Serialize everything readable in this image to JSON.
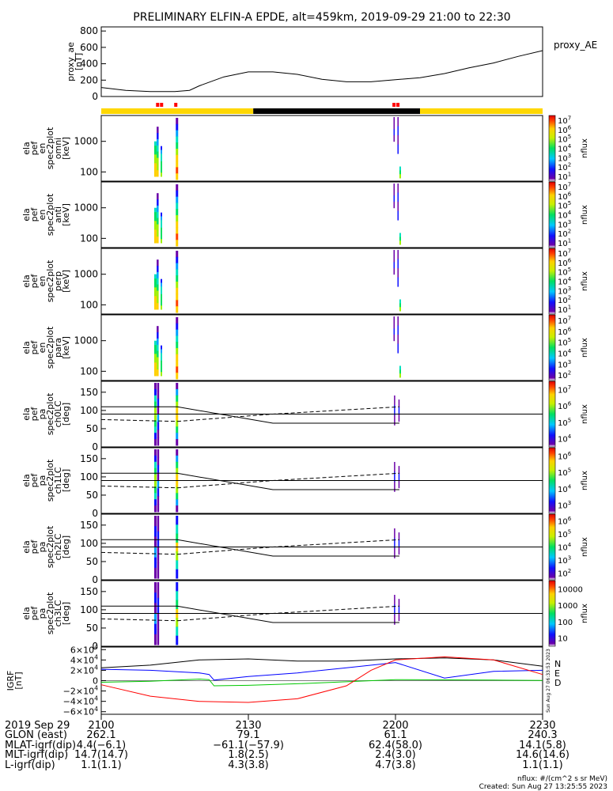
{
  "title": "PRELIMINARY ELFIN-A EPDE, alt=459km, 2019-09-29 21:00 to 22:30",
  "chart_data": [
    {
      "type": "line",
      "id": "proxy_ae",
      "ylabel": [
        "proxy_ae",
        "[nT]"
      ],
      "legend": "proxy_AE",
      "ylim": [
        0,
        850
      ],
      "yticks": [
        "0",
        "200",
        "400",
        "600",
        "800"
      ],
      "x_minutes": [
        0,
        5,
        10,
        15,
        18,
        20,
        25,
        30,
        35,
        40,
        45,
        50,
        55,
        60,
        65,
        70,
        75,
        80,
        85,
        90
      ],
      "values": [
        110,
        75,
        60,
        60,
        75,
        130,
        240,
        300,
        300,
        270,
        210,
        180,
        180,
        205,
        230,
        280,
        350,
        410,
        490,
        560
      ]
    },
    {
      "type": "bar",
      "id": "sunlight_bar",
      "segments": [
        {
          "from": 0,
          "to": 31,
          "color": "#ffd700"
        },
        {
          "from": 31,
          "to": 65,
          "color": "#000000"
        },
        {
          "from": 65,
          "to": 90,
          "color": "#ffd700"
        }
      ],
      "markers": [
        11.5,
        12.3,
        15.2,
        59.7,
        60.5
      ],
      "marker_color": "#ff0000"
    },
    {
      "type": "heatmap",
      "id": "spec_omni",
      "ylabel": [
        "ela",
        "pef",
        "en",
        "spec2plot",
        "omni",
        "[keV]"
      ],
      "yscale": "log",
      "yticks": [
        "100",
        "1000"
      ],
      "colorbar": {
        "label": "nflux",
        "ticks": [
          "10",
          "10",
          "10",
          "10",
          "10",
          "10",
          "10"
        ],
        "exponents": [
          "1",
          "2",
          "3",
          "4",
          "5",
          "6",
          "7"
        ]
      }
    },
    {
      "type": "heatmap",
      "id": "spec_anti",
      "ylabel": [
        "ela",
        "pef",
        "en",
        "spec2plot",
        "anti",
        "[keV]"
      ],
      "yscale": "log",
      "yticks": [
        "100",
        "1000"
      ],
      "colorbar": {
        "label": "nflux",
        "ticks": [
          "10",
          "10",
          "10",
          "10",
          "10",
          "10",
          "10"
        ],
        "exponents": [
          "1",
          "2",
          "3",
          "4",
          "5",
          "6",
          "7"
        ]
      }
    },
    {
      "type": "heatmap",
      "id": "spec_perp",
      "ylabel": [
        "ela",
        "pef",
        "en",
        "spec2plot",
        "perp",
        "[keV]"
      ],
      "yscale": "log",
      "yticks": [
        "100",
        "1000"
      ],
      "colorbar": {
        "label": "nflux",
        "ticks": [
          "10",
          "10",
          "10",
          "10",
          "10",
          "10",
          "10"
        ],
        "exponents": [
          "1",
          "2",
          "3",
          "4",
          "5",
          "6",
          "7"
        ]
      }
    },
    {
      "type": "heatmap",
      "id": "spec_para",
      "ylabel": [
        "ela",
        "pef",
        "en",
        "spec2plot",
        "para",
        "[keV]"
      ],
      "yscale": "log",
      "yticks": [
        "100",
        "1000"
      ],
      "colorbar": {
        "label": "nflux",
        "ticks": [
          "10",
          "10",
          "10",
          "10",
          "10",
          "10"
        ],
        "exponents": [
          "2",
          "3",
          "4",
          "5",
          "6",
          "7"
        ]
      }
    },
    {
      "type": "heatmap",
      "id": "pa_ch0",
      "ylabel": [
        "ela",
        "pef",
        "pa",
        "spec2plot",
        "ch0LC",
        "[deg]"
      ],
      "ylim": [
        0,
        180
      ],
      "yticks": [
        "0",
        "50",
        "100",
        "150"
      ],
      "colorbar": {
        "label": "nflux",
        "ticks": [
          "10",
          "10",
          "10",
          "10"
        ],
        "exponents": [
          "4",
          "5",
          "6",
          "7"
        ]
      }
    },
    {
      "type": "heatmap",
      "id": "pa_ch1",
      "ylabel": [
        "ela",
        "pef",
        "pa",
        "spec2plot",
        "ch1LC",
        "[deg]"
      ],
      "ylim": [
        0,
        180
      ],
      "yticks": [
        "0",
        "50",
        "100",
        "150"
      ],
      "colorbar": {
        "label": "nflux",
        "ticks": [
          "10",
          "10",
          "10",
          "10"
        ],
        "exponents": [
          "3",
          "4",
          "5",
          "6"
        ]
      }
    },
    {
      "type": "heatmap",
      "id": "pa_ch2",
      "ylabel": [
        "ela",
        "pef",
        "pa",
        "spec2plot",
        "ch2LC",
        "[deg]"
      ],
      "ylim": [
        0,
        180
      ],
      "yticks": [
        "0",
        "50",
        "100",
        "150"
      ],
      "colorbar": {
        "label": "nflux",
        "ticks": [
          "10",
          "10",
          "10",
          "10",
          "10"
        ],
        "exponents": [
          "2",
          "3",
          "4",
          "5",
          "6"
        ]
      }
    },
    {
      "type": "heatmap",
      "id": "pa_ch3",
      "ylabel": [
        "ela",
        "pef",
        "pa",
        "spec2plot",
        "ch3LC",
        "[deg]"
      ],
      "ylim": [
        0,
        180
      ],
      "yticks": [
        "0",
        "50",
        "100",
        "150"
      ],
      "colorbar": {
        "label": "nflux",
        "ticks": [
          "10",
          "100",
          "1000",
          "10000"
        ],
        "exponents": [
          "",
          "",
          "",
          ""
        ]
      }
    },
    {
      "type": "line",
      "id": "igrf",
      "ylabel": [
        "IGRF",
        "[nT]"
      ],
      "ylim": [
        -65000,
        65000
      ],
      "yticks": [
        "−6×10",
        "−4×10",
        "−2×10",
        "0",
        "2×10",
        "4×10",
        "6×10"
      ],
      "ytick_exponent": "4",
      "legend": [
        "N",
        "E",
        "D"
      ],
      "side_note": "Sun Aug 27 06:33:53 2023",
      "series": [
        {
          "name": "N",
          "color": "#000000",
          "x": [
            0,
            10,
            20,
            30,
            40,
            50,
            60,
            70,
            80,
            90
          ],
          "values": [
            25000,
            30000,
            40000,
            42000,
            38000,
            38000,
            42000,
            44000,
            40000,
            28000
          ]
        },
        {
          "name": "E",
          "color": "#0000ff",
          "x": [
            0,
            10,
            20,
            22,
            23,
            30,
            40,
            50,
            60,
            70,
            80,
            90
          ],
          "values": [
            22000,
            20000,
            15000,
            12000,
            1000,
            8000,
            15000,
            25000,
            35000,
            5000,
            18000,
            20000
          ]
        },
        {
          "name": "",
          "color": "#00c800",
          "x": [
            0,
            10,
            20,
            22,
            23,
            30,
            40,
            60,
            80,
            90
          ],
          "values": [
            -3000,
            -1000,
            3000,
            2000,
            -10000,
            -9000,
            -6000,
            2000,
            1000,
            500
          ]
        },
        {
          "name": "D",
          "color": "#ff0000",
          "x": [
            0,
            10,
            20,
            30,
            40,
            50,
            55,
            60,
            70,
            80,
            90
          ],
          "values": [
            -8000,
            -30000,
            -40000,
            -42000,
            -35000,
            -10000,
            20000,
            40000,
            46000,
            40000,
            12000
          ]
        }
      ]
    }
  ],
  "time_axis": {
    "tick_labels": [
      "2100",
      "2130",
      "2200",
      "2230"
    ],
    "rows": [
      {
        "label": "2019 Sep 29",
        "values": [
          "",
          "",
          "",
          ""
        ]
      },
      {
        "label": "GLON (east)",
        "values": [
          "262.1",
          "79.1",
          "61.1",
          "240.3"
        ]
      },
      {
        "label": "MLAT-igrf(dip)",
        "values": [
          "4.4(−6.1)",
          "−61.1(−57.9)",
          "62.4(58.0)",
          "14.1(5.8)"
        ]
      },
      {
        "label": "MLT-igrf(dip)",
        "values": [
          "14.7(14.7)",
          "1.8(2.5)",
          "2.4(3.0)",
          "14.6(14.6)"
        ]
      },
      {
        "label": "L-igrf(dip)",
        "values": [
          "1.1(1.1)",
          "4.3(3.8)",
          "4.7(3.8)",
          "1.1(1.1)"
        ]
      }
    ]
  },
  "footer": {
    "units": "nflux: #/(cm^2 s sr MeV)",
    "created": "Created: Sun Aug 27 13:25:55 2023"
  }
}
